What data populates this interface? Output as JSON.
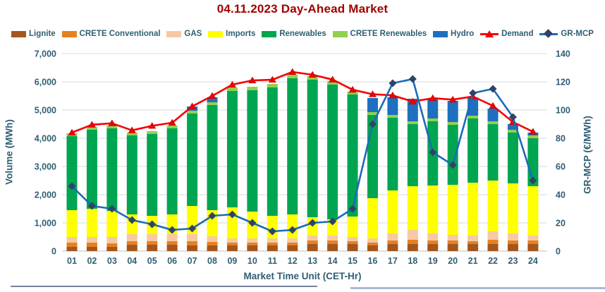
{
  "colors": {
    "title": "#A00000",
    "text": "#2E5F72",
    "grid": "#D9D9D9",
    "baseline": "#BFBFBF",
    "divider_left": "#76849B",
    "divider_right": "#A9BACE"
  },
  "chart_data": {
    "type": "combo: stacked bar + 2 lines",
    "title": "04.11.2023  Day-Ahead Market",
    "x_title": "Market Time Unit (CET-Hr)",
    "y_left_title": "Volume (MWh)",
    "y_right_title": "GR-MCP (€/MWh)",
    "y_left_range": [
      0,
      7000
    ],
    "y_left_ticks": [
      "0",
      "1,000",
      "2,000",
      "3,000",
      "4,000",
      "5,000",
      "6,000",
      "7,000"
    ],
    "y_right_range": [
      0,
      140
    ],
    "y_right_ticks": [
      "0",
      "20",
      "40",
      "60",
      "80",
      "100",
      "120",
      "140"
    ],
    "grid": "horizontal",
    "legend_position": "top",
    "categories": [
      "01",
      "02",
      "03",
      "04",
      "05",
      "06",
      "07",
      "08",
      "09",
      "10",
      "11",
      "12",
      "13",
      "14",
      "15",
      "16",
      "17",
      "18",
      "19",
      "20",
      "21",
      "22",
      "23",
      "24"
    ],
    "bar_series": [
      {
        "name": "Lignite",
        "color": "#A3561E",
        "values": [
          150,
          150,
          150,
          225,
          225,
          225,
          200,
          200,
          200,
          200,
          200,
          200,
          250,
          250,
          250,
          200,
          250,
          250,
          250,
          250,
          250,
          250,
          250,
          250
        ]
      },
      {
        "name": "CRETE Conventional",
        "color": "#E8801F",
        "values": [
          150,
          150,
          125,
          125,
          125,
          125,
          150,
          125,
          100,
          100,
          100,
          100,
          125,
          125,
          100,
          100,
          125,
          150,
          125,
          125,
          100,
          150,
          125,
          125
        ]
      },
      {
        "name": "GAS",
        "color": "#F6C9A4",
        "values": [
          200,
          200,
          225,
          250,
          250,
          250,
          250,
          200,
          150,
          150,
          150,
          150,
          175,
          175,
          150,
          150,
          250,
          350,
          250,
          200,
          200,
          300,
          250,
          175
        ]
      },
      {
        "name": "Imports",
        "color": "#FFFF00",
        "values": [
          950,
          1000,
          925,
          700,
          650,
          700,
          1000,
          925,
          1100,
          950,
          800,
          850,
          650,
          575,
          725,
          1425,
          1525,
          1550,
          1700,
          1775,
          1875,
          1800,
          1775,
          1750
        ]
      },
      {
        "name": "Renewables",
        "color": "#00A551",
        "values": [
          2625,
          2800,
          2925,
          2800,
          2900,
          3050,
          3275,
          3725,
          4125,
          4300,
          4550,
          4825,
          4875,
          4775,
          4325,
          2950,
          2575,
          2200,
          2275,
          2125,
          2275,
          2000,
          1800,
          1700
        ]
      },
      {
        "name": "CRETE Renewables",
        "color": "#92D050",
        "values": [
          100,
          100,
          100,
          100,
          100,
          100,
          100,
          100,
          125,
          125,
          125,
          125,
          125,
          125,
          100,
          100,
          100,
          100,
          100,
          100,
          100,
          100,
          100,
          100
        ]
      },
      {
        "name": "Hydro",
        "color": "#1E6FC0",
        "values": [
          0,
          0,
          0,
          0,
          0,
          0,
          150,
          175,
          0,
          0,
          0,
          0,
          0,
          0,
          0,
          500,
          625,
          800,
          675,
          750,
          650,
          450,
          200,
          100
        ]
      }
    ],
    "line_series": [
      {
        "name": "Demand",
        "axis": "left",
        "marker": "triangle",
        "color": "#F40000",
        "marker_color": "#C00000",
        "values": [
          4200,
          4480,
          4530,
          4280,
          4440,
          4550,
          5130,
          5500,
          5900,
          6050,
          6075,
          6350,
          6250,
          6080,
          5720,
          5560,
          5520,
          5300,
          5420,
          5370,
          5480,
          5150,
          4575,
          4230
        ]
      },
      {
        "name": "GR-MCP",
        "axis": "right",
        "marker": "diamond",
        "color": "#1C6BB8",
        "marker_color": "#2E4466",
        "values": [
          46,
          32,
          30,
          22,
          19,
          15,
          16,
          25,
          26,
          20,
          14,
          15,
          20,
          21,
          30,
          90,
          119,
          122,
          70,
          61,
          112,
          115,
          95,
          50
        ]
      }
    ]
  }
}
